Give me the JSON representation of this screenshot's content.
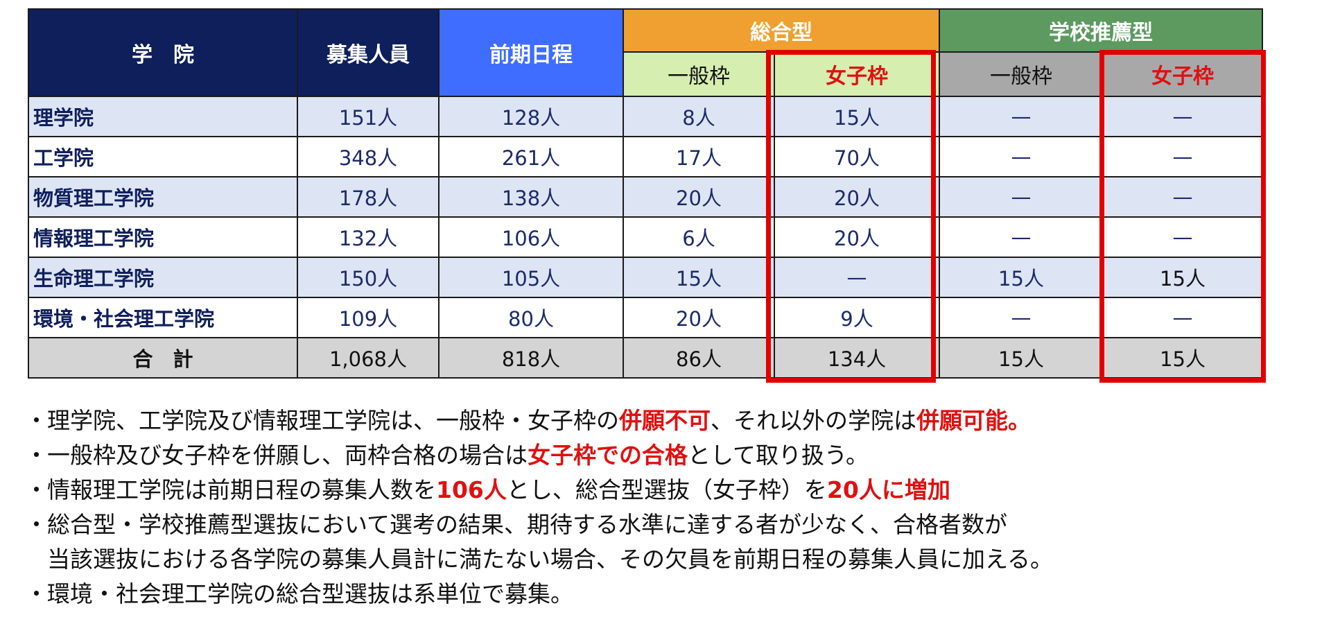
{
  "table": {
    "headers": {
      "department": "学　院",
      "capacity": "募集人員",
      "early_schedule": "前期日程",
      "comprehensive": "総合型",
      "school_recommendation": "学校推薦型",
      "general_quota": "一般枠",
      "women_quota": "女子枠"
    },
    "rows": [
      {
        "name": "理学院",
        "capacity": "151人",
        "early": "128人",
        "comp_general": "8人",
        "comp_women": "15人",
        "rec_general": "—",
        "rec_women": "—"
      },
      {
        "name": "工学院",
        "capacity": "348人",
        "early": "261人",
        "comp_general": "17人",
        "comp_women": "70人",
        "rec_general": "—",
        "rec_women": "—"
      },
      {
        "name": "物質理工学院",
        "capacity": "178人",
        "early": "138人",
        "comp_general": "20人",
        "comp_women": "20人",
        "rec_general": "—",
        "rec_women": "—"
      },
      {
        "name": "情報理工学院",
        "capacity": "132人",
        "early": "106人",
        "comp_general": "6人",
        "comp_women": "20人",
        "rec_general": "—",
        "rec_women": "—"
      },
      {
        "name": "生命理工学院",
        "capacity": "150人",
        "early": "105人",
        "comp_general": "15人",
        "comp_women": "—",
        "rec_general": "15人",
        "rec_women": "15人"
      },
      {
        "name": "環境・社会理工学院",
        "capacity": "109人",
        "early": "80人",
        "comp_general": "20人",
        "comp_women": "9人",
        "rec_general": "—",
        "rec_women": "—"
      }
    ],
    "total": {
      "name": "合　計",
      "capacity": "1,068人",
      "early": "818人",
      "comp_general": "86人",
      "comp_women": "134人",
      "rec_general": "15人",
      "rec_women": "15人"
    }
  },
  "notes": [
    {
      "parts": [
        {
          "text": "理学院、工学院及び情報理工学院は、一般枠・女子枠の",
          "em": false
        },
        {
          "text": "併願不可",
          "em": true
        },
        {
          "text": "、それ以外の学院は",
          "em": false
        },
        {
          "text": "併願可能。",
          "em": true
        }
      ]
    },
    {
      "parts": [
        {
          "text": "一般枠及び女子枠を併願し、両枠合格の場合は",
          "em": false
        },
        {
          "text": "女子枠での合格",
          "em": true
        },
        {
          "text": "として取り扱う。",
          "em": false
        }
      ]
    },
    {
      "parts": [
        {
          "text": "情報理工学院は前期日程の募集人数を",
          "em": false
        },
        {
          "text": "106人",
          "em": true
        },
        {
          "text": "とし、総合型選抜（女子枠）を",
          "em": false
        },
        {
          "text": "20人に増加",
          "em": true
        }
      ]
    },
    {
      "parts": [
        {
          "text": "総合型・学校推薦型選抜において選考の結果、期待する水準に達する者が少なく、合格者数が",
          "em": false
        }
      ],
      "continuation": "当該選抜における各学院の募集人員計に満たない場合、その欠員を前期日程の募集人員に加える。"
    },
    {
      "parts": [
        {
          "text": "環境・社会理工学院の総合型選抜は系単位で募集。",
          "em": false
        }
      ]
    }
  ],
  "bullet": "・",
  "colors": {
    "navy": "#0f1f5c",
    "blue": "#3e6dff",
    "orange": "#f0a030",
    "green": "#5c9a60",
    "highlight_red": "#e00000"
  }
}
